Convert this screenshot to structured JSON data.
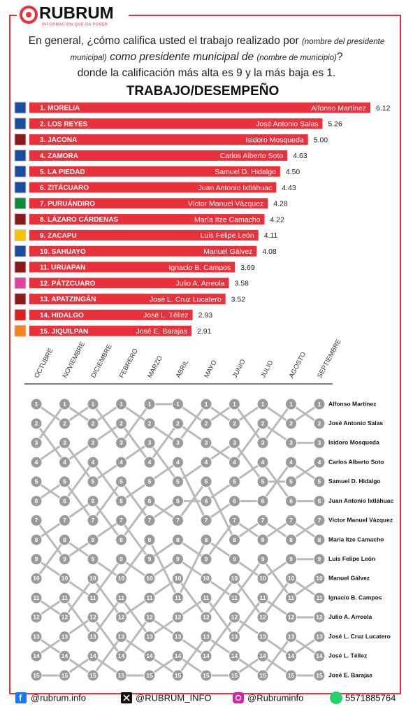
{
  "header": {
    "logo": "RUBRUM",
    "tagline": "INFORMACIÓN QUE DA PODER",
    "question": [
      "En general, ¿cómo califica usted el trabajo realizado por",
      "(nombre del presidente municipal)",
      "como presidente municipal de",
      "(nombre de municipio)",
      "?",
      "donde la calificación más alta es 9 y la más baja es 1."
    ]
  },
  "chart_data": [
    {
      "type": "bar",
      "orientation": "horizontal",
      "title": "TRABAJO/DESEMPEÑO",
      "color": "#e8313a",
      "categories": [
        "1. MORELIA",
        "2. LOS REYES",
        "3. JACONA",
        "4. ZAMORA",
        "5. LA PIEDAD",
        "6. ZITÁCUARO",
        "7. PURUÁNDIRO",
        "8. LÁZARO CÁRDENAS",
        "9. ZACAPU",
        "10. SAHUAYO",
        "11. URUAPAN",
        "12. PÁTZCUARO",
        "13. APATZINGÁN",
        "14. HIDALGO",
        "15. JIQUILPAN"
      ],
      "labels": [
        "Alfonso Martínez",
        "José Antonio Salas",
        "Isidoro Mosqueda",
        "Carlos Alberto Soto",
        "Samuel D. Hidalgo",
        "Juan Antonio Ixtláhuac",
        "Víctor Manuel Vázquez",
        "María Itze Camacho",
        "Luis Felipe León",
        "Manuel Gálvez",
        "Ignacio B. Campos",
        "Julio A. Arreola",
        "José L. Cruz Lucatero",
        "José L. Téllez",
        "José E. Barajas"
      ],
      "values": [
        6.12,
        5.26,
        5.0,
        4.63,
        4.5,
        4.43,
        4.28,
        4.22,
        4.11,
        4.08,
        3.69,
        3.58,
        3.52,
        2.93,
        2.91
      ],
      "value_labels": [
        "6.12",
        "5.26",
        "5.00",
        "4.63",
        "4.50",
        "4.43",
        "4.28",
        "4.22",
        "4.11",
        "4.08",
        "3.69",
        "3.58",
        "3.52",
        "2.93",
        "2.91"
      ]
    },
    {
      "type": "bump",
      "color": "#b9b9b9",
      "marker_color": "#9a9a9a",
      "ylim": [
        15,
        1
      ],
      "categories": [
        "OCTUBRE",
        "NOVIEMBRE",
        "DICIEMBRE",
        "FEBRERO",
        "MARZO",
        "ABRIL",
        "MAYO",
        "JUNIO",
        "JULIO",
        "AGOSTO",
        "SEPTIEMBRE"
      ],
      "series": [
        {
          "name": "Alfonso Martínez",
          "values": [
            3,
            1,
            2,
            1,
            2,
            3,
            1,
            2,
            1,
            2,
            1
          ]
        },
        {
          "name": "José Antonio Salas",
          "values": [
            1,
            2,
            1,
            3,
            1,
            1,
            2,
            1,
            3,
            1,
            2
          ]
        },
        {
          "name": "Isidoro Mosqueda",
          "values": [
            2,
            4,
            3,
            2,
            4,
            2,
            3,
            4,
            2,
            3,
            3
          ]
        },
        {
          "name": "Carlos Alberto Soto",
          "values": [
            4,
            3,
            5,
            4,
            3,
            5,
            4,
            3,
            5,
            5,
            4
          ]
        },
        {
          "name": "Samuel D. Hidalgo",
          "values": [
            5,
            6,
            4,
            6,
            5,
            4,
            7,
            6,
            6,
            4,
            5
          ]
        },
        {
          "name": "Juan Antonio Ixtláhuac",
          "values": [
            6,
            5,
            7,
            5,
            7,
            6,
            6,
            5,
            4,
            6,
            6
          ]
        },
        {
          "name": "Víctor Manuel Vázquez",
          "values": [
            8,
            7,
            6,
            8,
            6,
            7,
            5,
            8,
            7,
            8,
            7
          ]
        },
        {
          "name": "María Itze Camacho",
          "values": [
            7,
            9,
            8,
            7,
            9,
            8,
            9,
            7,
            8,
            7,
            8
          ]
        },
        {
          "name": "Luis Felipe León",
          "values": [
            10,
            8,
            9,
            10,
            8,
            11,
            8,
            9,
            10,
            9,
            9
          ]
        },
        {
          "name": "Manuel Gálvez",
          "values": [
            9,
            10,
            11,
            9,
            10,
            9,
            10,
            11,
            9,
            11,
            10
          ]
        },
        {
          "name": "Ignacio B. Campos",
          "values": [
            11,
            12,
            10,
            12,
            11,
            10,
            12,
            10,
            12,
            10,
            11
          ]
        },
        {
          "name": "Julio A. Arreola",
          "values": [
            12,
            11,
            13,
            11,
            13,
            12,
            11,
            13,
            11,
            12,
            12
          ]
        },
        {
          "name": "José L. Cruz Lucatero",
          "values": [
            14,
            13,
            12,
            14,
            12,
            13,
            14,
            12,
            13,
            14,
            13
          ]
        },
        {
          "name": "José L. Téllez",
          "values": [
            13,
            14,
            15,
            13,
            14,
            15,
            13,
            14,
            15,
            13,
            14
          ]
        },
        {
          "name": "José E. Barajas",
          "values": [
            15,
            15,
            14,
            15,
            15,
            14,
            15,
            15,
            14,
            15,
            15
          ]
        }
      ]
    }
  ],
  "footer": {
    "facebook": "@rubrum.info",
    "x": "@RUBRUM_INFO",
    "instagram": "@Rubruminfo",
    "whatsapp": "5571885764"
  }
}
